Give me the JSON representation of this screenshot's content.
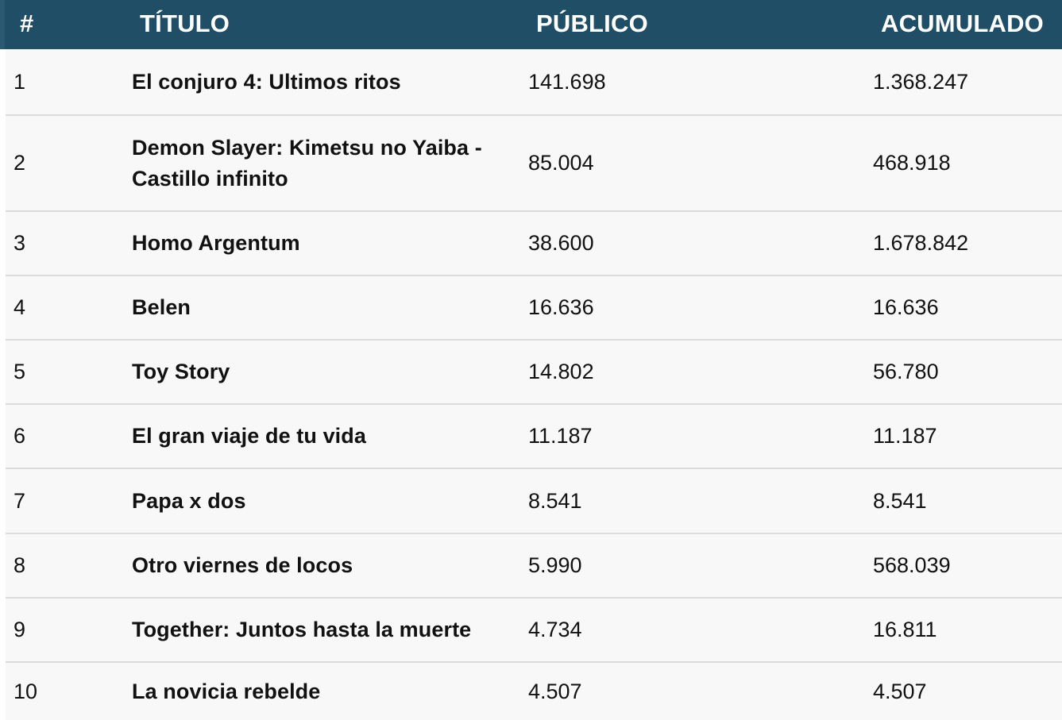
{
  "table": {
    "headers": {
      "rank": "#",
      "title": "TÍTULO",
      "public": "PÚBLICO",
      "accumulated": "ACUMULADO"
    },
    "rows": [
      {
        "rank": "1",
        "title": "El conjuro 4: Ultimos ritos",
        "public": "141.698",
        "accumulated": "1.368.247"
      },
      {
        "rank": "2",
        "title": "Demon Slayer: Kimetsu no Yaiba - Castillo infinito",
        "public": "85.004",
        "accumulated": "468.918"
      },
      {
        "rank": "3",
        "title": "Homo Argentum",
        "public": "38.600",
        "accumulated": "1.678.842"
      },
      {
        "rank": "4",
        "title": "Belen",
        "public": "16.636",
        "accumulated": "16.636"
      },
      {
        "rank": "5",
        "title": "Toy Story",
        "public": "14.802",
        "accumulated": "56.780"
      },
      {
        "rank": "6",
        "title": "El gran viaje de tu vida",
        "public": "11.187",
        "accumulated": "11.187"
      },
      {
        "rank": "7",
        "title": "Papa x dos",
        "public": "8.541",
        "accumulated": "8.541"
      },
      {
        "rank": "8",
        "title": "Otro viernes de locos",
        "public": "5.990",
        "accumulated": "568.039"
      },
      {
        "rank": "9",
        "title": "Together: Juntos hasta la muerte",
        "public": "4.734",
        "accumulated": "16.811"
      },
      {
        "rank": "10",
        "title": "La novicia rebelde",
        "public": "4.507",
        "accumulated": "4.507"
      }
    ]
  },
  "colors": {
    "header_bg": "#1f4e66",
    "header_text": "#ffffff",
    "row_bg": "#f8f8f8",
    "divider": "#dcdcdc"
  }
}
